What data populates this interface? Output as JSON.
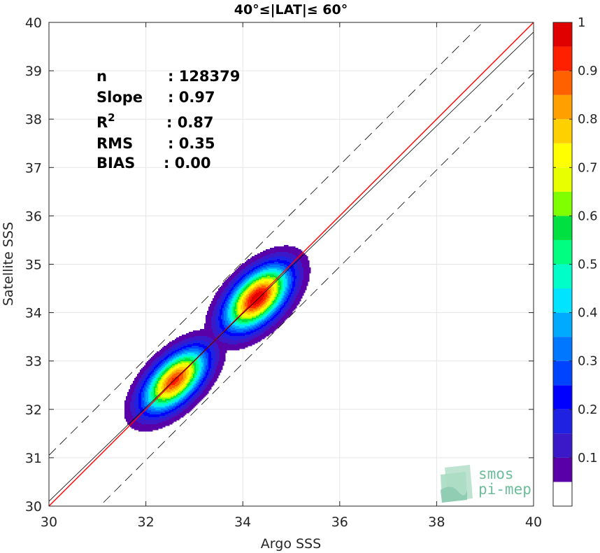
{
  "chart_data": {
    "type": "contour-density",
    "title": "40°≤|LAT|≤ 60°",
    "xlabel": "Argo SSS",
    "ylabel": "Satellite SSS",
    "xlim": [
      30,
      40
    ],
    "ylim": [
      30,
      40
    ],
    "xticks": [
      "30",
      "32",
      "34",
      "36",
      "38",
      "40"
    ],
    "yticks": [
      "30",
      "31",
      "32",
      "33",
      "34",
      "35",
      "36",
      "37",
      "38",
      "39",
      "40"
    ],
    "grid": true,
    "stats": [
      {
        "label": "n",
        "value": ": 128379"
      },
      {
        "label": "Slope",
        "value": ": 0.97"
      },
      {
        "label": "R",
        "sup": "2",
        "value": ": 0.87"
      },
      {
        "label": "RMS",
        "value": ": 0.35"
      },
      {
        "label": "BIAS",
        "value": ": 0.00"
      }
    ],
    "lines": [
      {
        "name": "one-to-one",
        "color": "#ff0000",
        "x": [
          30,
          40
        ],
        "y": [
          30,
          40
        ]
      },
      {
        "name": "regression",
        "color": "#000000",
        "x": [
          30,
          40
        ],
        "y": [
          30.1,
          39.8
        ]
      },
      {
        "name": "upper-bound",
        "color": "#000000",
        "dash": true,
        "x": [
          30,
          40
        ],
        "y": [
          31.05,
          41.05
        ]
      },
      {
        "name": "lower-bound",
        "color": "#000000",
        "dash": true,
        "x": [
          30,
          40
        ],
        "y": [
          28.95,
          38.95
        ]
      }
    ],
    "density_peaks": [
      {
        "x": 32.6,
        "y": 32.6,
        "peak": 0.92,
        "sigma_major": 0.55,
        "sigma_minor": 0.28
      },
      {
        "x": 34.3,
        "y": 34.3,
        "peak": 1.0,
        "sigma_major": 0.55,
        "sigma_minor": 0.3
      }
    ],
    "colorbar": {
      "ticks": [
        "0.1",
        "0.2",
        "0.3",
        "0.4",
        "0.5",
        "0.6",
        "0.7",
        "0.8",
        "0.9",
        "1"
      ],
      "levels": [
        0,
        0.05,
        0.1,
        0.15,
        0.2,
        0.25,
        0.3,
        0.35,
        0.4,
        0.45,
        0.5,
        0.55,
        0.6,
        0.65,
        0.7,
        0.75,
        0.8,
        0.85,
        0.9,
        0.95,
        1.0
      ],
      "colors": [
        "#ffffff",
        "#5a00a8",
        "#3b18c8",
        "#1f22e0",
        "#0000ff",
        "#0044ff",
        "#0077ff",
        "#00aaff",
        "#00e4ff",
        "#00ffc8",
        "#00ff80",
        "#00e040",
        "#80ff00",
        "#e8ff00",
        "#ffff00",
        "#ffd000",
        "#ffa000",
        "#ff6000",
        "#ff2000",
        "#e00000",
        "#a00000"
      ]
    },
    "watermark": [
      "smos",
      "pi-mep"
    ]
  }
}
